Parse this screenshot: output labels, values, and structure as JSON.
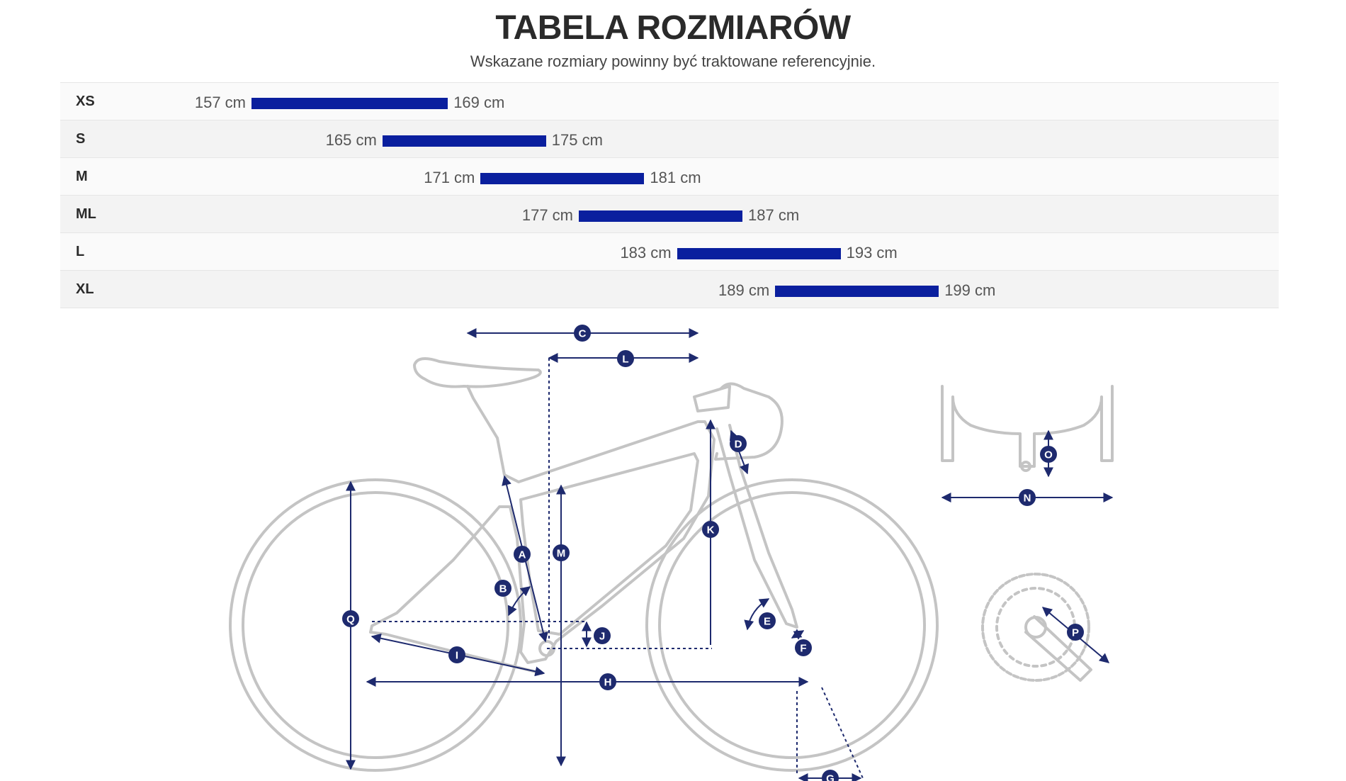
{
  "header": {
    "title": "TABELA ROZMIARÓW",
    "subtitle": "Wskazane rozmiary powinny być traktowane referencyjnie."
  },
  "sizes": [
    {
      "label": "XS",
      "min": 157,
      "max": 169,
      "min_text": "157 cm",
      "max_text": "169 cm"
    },
    {
      "label": "S",
      "min": 165,
      "max": 175,
      "min_text": "165 cm",
      "max_text": "175 cm"
    },
    {
      "label": "M",
      "min": 171,
      "max": 181,
      "min_text": "171 cm",
      "max_text": "181 cm"
    },
    {
      "label": "ML",
      "min": 177,
      "max": 187,
      "min_text": "177 cm",
      "max_text": "187 cm"
    },
    {
      "label": "L",
      "min": 183,
      "max": 193,
      "min_text": "183 cm",
      "max_text": "193 cm"
    },
    {
      "label": "XL",
      "min": 189,
      "max": 199,
      "min_text": "189 cm",
      "max_text": "199 cm"
    }
  ],
  "diagram": {
    "markers": {
      "A": "A",
      "B": "B",
      "C": "C",
      "D": "D",
      "E": "E",
      "F": "F",
      "G": "G",
      "H": "H",
      "I": "I",
      "J": "J",
      "K": "K",
      "L": "L",
      "M": "M",
      "N": "N",
      "O": "O",
      "P": "P",
      "Q": "Q"
    }
  },
  "colors": {
    "bar": "#0a1f9e",
    "marker": "#1e2a6e",
    "outline": "#c4c4c4"
  }
}
